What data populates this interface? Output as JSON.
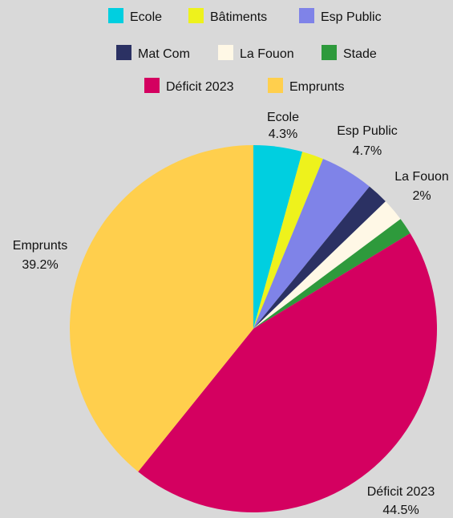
{
  "chart_data": {
    "type": "pie",
    "title": "",
    "legend": {
      "placement": "top",
      "rows": [
        [
          0,
          1,
          2
        ],
        [
          3,
          4,
          5
        ],
        [
          6,
          7
        ]
      ]
    },
    "slices": [
      {
        "label": "Ecole",
        "value": 4.3,
        "color": "#00cfe0",
        "show_label": true,
        "label_text": "4.3%"
      },
      {
        "label": "Bâtiments",
        "value": 1.9,
        "color": "#eef21c",
        "show_label": false,
        "label_text": ""
      },
      {
        "label": "Esp Public",
        "value": 4.7,
        "color": "#7f83e8",
        "show_label": true,
        "label_text": "4.7%"
      },
      {
        "label": "Mat Com",
        "value": 1.9,
        "color": "#2b3163",
        "show_label": false,
        "label_text": ""
      },
      {
        "label": "La Fouon",
        "value": 2,
        "color": "#fff8e6",
        "show_label": true,
        "label_text": "2%"
      },
      {
        "label": "Stade",
        "value": 1.5,
        "color": "#2e9a3c",
        "show_label": false,
        "label_text": ""
      },
      {
        "label": "Déficit 2023",
        "value": 44.5,
        "color": "#d40060",
        "show_label": true,
        "label_text": "44.5%"
      },
      {
        "label": "Emprunts",
        "value": 39.2,
        "color": "#ffcf4d",
        "show_label": true,
        "label_text": "39.2%"
      }
    ]
  }
}
